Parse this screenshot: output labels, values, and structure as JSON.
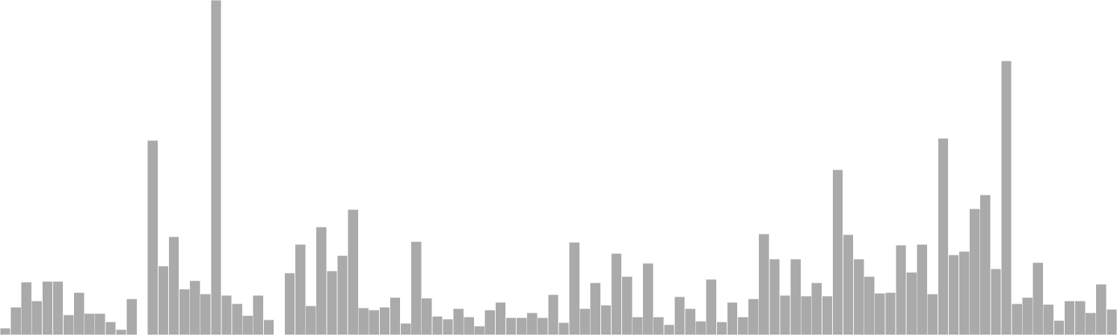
{
  "chart_data": {
    "type": "bar",
    "title": "",
    "xlabel": "",
    "ylabel": "",
    "ylim": [
      0,
      480
    ],
    "grid": false,
    "legend": "none",
    "bar_color": "#aaaaaa",
    "bar_edge_color": "#ffffff",
    "background_color": "#ffffff",
    "values": [
      10,
      40,
      76,
      49,
      77,
      77,
      29,
      61,
      31,
      31,
      19,
      8,
      52,
      0,
      279,
      99,
      141,
      66,
      78,
      59,
      480,
      57,
      45,
      28,
      57,
      22,
      0,
      89,
      130,
      42,
      155,
      92,
      114,
      180,
      39,
      36,
      40,
      54,
      17,
      134,
      53,
      27,
      23,
      38,
      26,
      13,
      36,
      47,
      25,
      25,
      32,
      25,
      58,
      18,
      133,
      38,
      75,
      43,
      117,
      84,
      26,
      103,
      26,
      15,
      55,
      38,
      20,
      80,
      19,
      47,
      26,
      52,
      145,
      109,
      57,
      109,
      56,
      75,
      56,
      237,
      144,
      109,
      84,
      60,
      61,
      129,
      90,
      130,
      59,
      282,
      115,
      120,
      181,
      201,
      95,
      393,
      45,
      54,
      104,
      44,
      21,
      49,
      49,
      32,
      73,
      37
    ]
  }
}
